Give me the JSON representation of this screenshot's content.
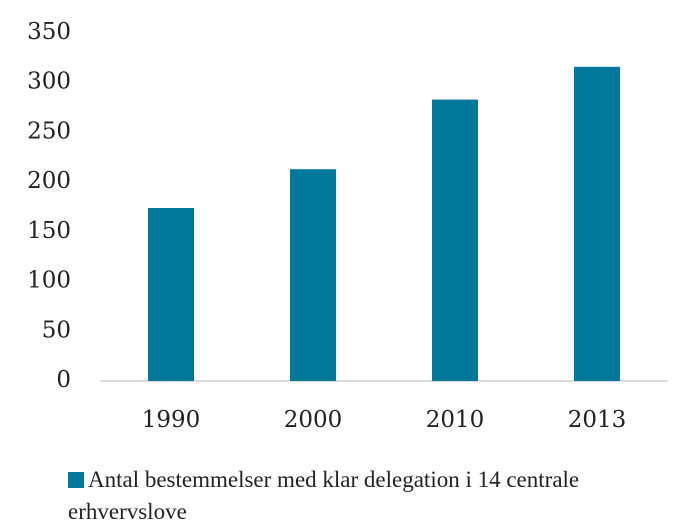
{
  "chart_data": {
    "type": "bar",
    "categories": [
      "1990",
      "2000",
      "2010",
      "2013"
    ],
    "series": [
      {
        "name": "Antal bestemmelser med klar delegation i 14 centrale erhvervslove",
        "color": "#00789c",
        "values": [
          174,
          213,
          283,
          316
        ]
      }
    ],
    "ylim": [
      0,
      350
    ],
    "yticks": [
      0,
      50,
      100,
      150,
      200,
      250,
      300,
      350
    ],
    "grid": false,
    "legend": "bottom"
  }
}
